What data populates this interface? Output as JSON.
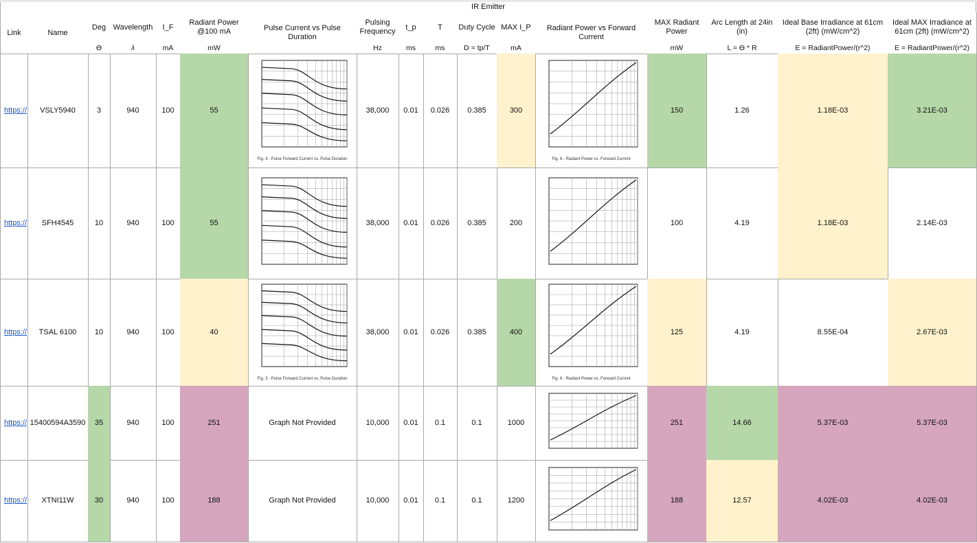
{
  "header": {
    "title": "IR Emitter"
  },
  "columns": [
    {
      "label": "Link"
    },
    {
      "label": "Name"
    },
    {
      "label": "Deg",
      "unit": "ϴ"
    },
    {
      "label": "Wavelength",
      "unit": "λ"
    },
    {
      "label": "I_F",
      "unit": "mA"
    },
    {
      "label": "Radiant Power @100 mA",
      "unit": "mW"
    },
    {
      "label": "Pulse Current vs Pulse Duration"
    },
    {
      "label": "Pulsing Frequency",
      "unit": "Hz"
    },
    {
      "label": "t_p",
      "unit": "ms"
    },
    {
      "label": "T",
      "unit": "ms"
    },
    {
      "label": "Duty Cycle",
      "unit": "D = tp/T"
    },
    {
      "label": "MAX I_P",
      "unit": "mA"
    },
    {
      "label": "Radiant Power vs Forward Current"
    },
    {
      "label": "MAX Radiant Power",
      "unit": "mW"
    },
    {
      "label": "Arc Length at 24in (in)",
      "unit": "L = ϴ * R"
    },
    {
      "label": "Ideal Base Irradiance at 61cm (2ft) (mW/cm^2)",
      "unit": "E = RadiantPower/(r^2)"
    },
    {
      "label": "Ideal MAX Irradiance at 61cm (2ft) (mW/cm^2)",
      "unit": "E = RadiantPower/(r^2)"
    }
  ],
  "rows": [
    {
      "cells": [
        "https://",
        "VSLY5940",
        "3",
        "940",
        "100",
        "55",
        {
          "plot": "falling",
          "caption": "Fig. 3 - Pulse Forward Current vs. Pulse Duration"
        },
        "38,000",
        "0.01",
        "0.026",
        "0.385",
        "300",
        {
          "plot": "rising",
          "caption": "Fig. 6 - Radiant Power vs. Forward Current"
        },
        "150",
        "1.26",
        "1.18E-03",
        "3.21E-03"
      ],
      "fills": [
        null,
        null,
        null,
        null,
        null,
        "#b6d7a8",
        null,
        null,
        null,
        null,
        null,
        "#fff2cc",
        null,
        "#b6d7a8",
        null,
        "#fff2cc",
        "#b6d7a8"
      ]
    },
    {
      "cells": [
        "https://",
        "SFH4545",
        "10",
        "940",
        "100",
        "55",
        {
          "plot": "falling"
        },
        "38,000",
        "0.01",
        "0.026",
        "0.385",
        "200",
        {
          "plot": "rising"
        },
        "100",
        "4.19",
        "1.18E-03",
        "2.14E-03"
      ],
      "fills": [
        null,
        null,
        null,
        null,
        null,
        "#b6d7a8",
        null,
        null,
        null,
        null,
        null,
        null,
        null,
        null,
        null,
        "#fff2cc",
        null
      ]
    },
    {
      "cells": [
        "https://",
        "TSAL 6100",
        "10",
        "940",
        "100",
        "40",
        {
          "plot": "falling",
          "caption": "Fig. 3 - Pulse Forward Current vs. Pulse Duration"
        },
        "38,000",
        "0.01",
        "0.026",
        "0.385",
        "400",
        {
          "plot": "rising",
          "caption": "Fig. 6 - Radiant Power vs. Forward Current"
        },
        "125",
        "4.19",
        "8.55E-04",
        "2.67E-03"
      ],
      "fills": [
        null,
        null,
        null,
        null,
        null,
        "#fff2cc",
        null,
        null,
        null,
        null,
        null,
        "#b6d7a8",
        null,
        "#fff2cc",
        null,
        null,
        "#fff2cc"
      ]
    },
    {
      "cells": [
        "https://",
        "15400594A3590",
        "35",
        "940",
        "100",
        "251",
        "Graph Not Provided",
        "10,000",
        "0.01",
        "0.1",
        "0.1",
        "1000",
        {
          "plot": "rising"
        },
        "251",
        "14.66",
        "5.37E-03",
        "5.37E-03"
      ],
      "fills": [
        null,
        null,
        "#b6d7a8",
        null,
        null,
        "#d5a6bd",
        null,
        null,
        null,
        null,
        null,
        null,
        null,
        "#d5a6bd",
        "#b6d7a8",
        "#d5a6bd",
        "#d5a6bd"
      ]
    },
    {
      "cells": [
        "https://",
        "XTNI11W",
        "30",
        "940",
        "100",
        "188",
        "Graph Not Provided",
        "10,000",
        "0.01",
        "0.1",
        "0.1",
        "1200",
        {
          "plot": "rising"
        },
        "188",
        "12.57",
        "4.02E-03",
        "4.02E-03"
      ],
      "fills": [
        null,
        null,
        "#b6d7a8",
        null,
        null,
        "#d5a6bd",
        null,
        null,
        null,
        null,
        null,
        null,
        null,
        "#d5a6bd",
        "#fff2cc",
        "#d5a6bd",
        "#d5a6bd"
      ]
    }
  ]
}
